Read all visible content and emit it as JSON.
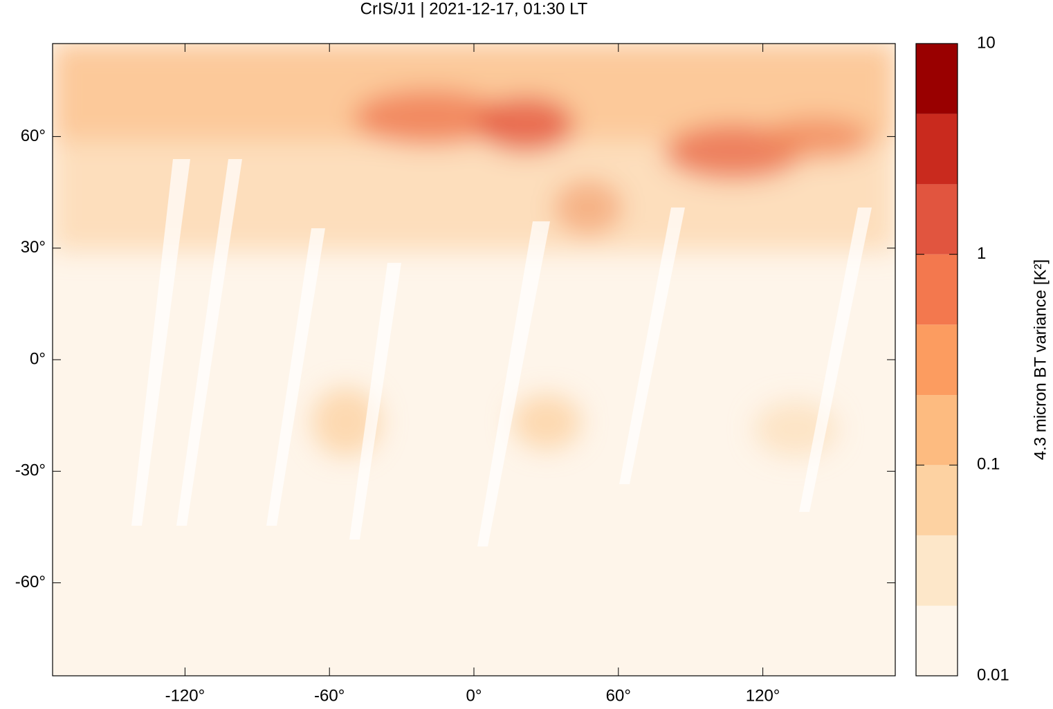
{
  "chart_data": {
    "type": "map",
    "title": "CrIS/J1 | 2021-12-17, 01:30 LT",
    "xlim": [
      -175,
      175
    ],
    "ylim": [
      -85,
      85
    ],
    "xticks": [
      {
        "value": -120,
        "label": "-120°"
      },
      {
        "value": -60,
        "label": "-60°"
      },
      {
        "value": 0,
        "label": "0°"
      },
      {
        "value": 60,
        "label": "60°"
      },
      {
        "value": 120,
        "label": "120°"
      }
    ],
    "yticks": [
      {
        "value": 60,
        "label": "60°"
      },
      {
        "value": 30,
        "label": "30°"
      },
      {
        "value": 0,
        "label": "0°"
      },
      {
        "value": -30,
        "label": "-30°"
      },
      {
        "value": -60,
        "label": "-60°"
      }
    ],
    "colorbar": {
      "label": "4.3 micron BT variance [K²]",
      "log": true,
      "lim": [
        0.01,
        10
      ],
      "ticks": [
        10,
        1,
        0.1,
        0.01
      ],
      "levels": [
        0.01,
        0.0215,
        0.0464,
        0.1,
        0.215,
        0.464,
        1,
        2.15,
        4.64,
        10
      ],
      "colors": [
        "#fef5ea",
        "#fde7c9",
        "#fdd2a2",
        "#fdbb80",
        "#fc9c60",
        "#f3784e",
        "#e1553f",
        "#c92a1e",
        "#990000"
      ]
    }
  }
}
